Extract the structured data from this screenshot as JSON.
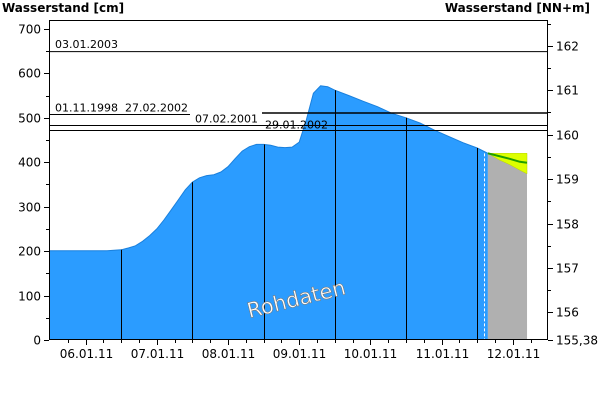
{
  "chart_data": {
    "type": "area",
    "left_axis": {
      "title": "Wasserstand [cm]",
      "ylim": [
        0,
        720
      ],
      "ticks": [
        0,
        100,
        200,
        300,
        400,
        500,
        600,
        700
      ]
    },
    "right_axis": {
      "title": "Wasserstand [NN+m]",
      "ticks": [
        "155,38",
        "156",
        "157",
        "158",
        "159",
        "160",
        "161",
        "162"
      ],
      "tick_cm": [
        0,
        62,
        162,
        262,
        362,
        462,
        562,
        662
      ]
    },
    "x_axis": {
      "tick_labels": [
        "06.01.11",
        "07.01.11",
        "08.01.11",
        "09.01.11",
        "10.01.11",
        "11.01.11",
        "12.01.11"
      ],
      "xlim": [
        0,
        7
      ]
    },
    "series": [
      {
        "values_x": [
          0.0,
          0.2,
          0.4,
          0.6,
          0.8,
          1.0,
          1.1,
          1.2,
          1.3,
          1.4,
          1.5,
          1.6,
          1.7,
          1.8,
          1.9,
          2.0,
          2.1,
          2.2,
          2.3,
          2.4,
          2.5,
          2.6,
          2.7,
          2.8,
          2.9,
          3.0,
          3.1,
          3.2,
          3.3,
          3.4,
          3.5,
          3.6,
          3.7,
          3.8,
          3.9,
          4.0,
          4.2,
          4.4,
          4.6,
          4.8,
          5.0,
          5.2,
          5.4,
          5.6,
          5.8,
          6.0,
          6.15
        ],
        "values_y": [
          201,
          201,
          201,
          201,
          201,
          203,
          207,
          212,
          222,
          235,
          250,
          270,
          292,
          315,
          338,
          355,
          365,
          370,
          372,
          378,
          390,
          408,
          425,
          435,
          440,
          440,
          438,
          434,
          433,
          434,
          445,
          495,
          555,
          572,
          570,
          562,
          550,
          537,
          525,
          510,
          500,
          488,
          472,
          458,
          444,
          432,
          420
        ]
      }
    ],
    "forecast": {
      "x": [
        6.15,
        6.3,
        6.45,
        6.6,
        6.7
      ],
      "center": [
        420,
        414,
        408,
        401,
        399
      ],
      "upper": [
        420,
        420,
        420,
        420,
        420
      ],
      "lower": [
        420,
        406,
        395,
        382,
        374
      ]
    },
    "reference_lines": [
      {
        "label": "03.01.2003",
        "value_cm": 650
      },
      {
        "label": "01.11.1998",
        "value_cm": 509
      },
      {
        "label": "27.02.2002",
        "value_cm": 509
      },
      {
        "label": "07.02.2001",
        "value_cm": 484
      },
      {
        "label": "29.01.2002",
        "value_cm": 472
      }
    ],
    "day_lines_x": [
      1,
      2,
      3,
      4,
      5,
      6
    ],
    "now_x": 6.1,
    "forecast_start_x": 6.15,
    "watermark": "Rohdaten",
    "colors": {
      "area": "#2b9cff",
      "area_edge": "#1a80dd",
      "forecast_area": "#b0b0b0",
      "forecast_band": "#ddff00",
      "forecast_line": "#1f9e00",
      "frame": "#000000",
      "now_line": "#ffffff"
    }
  }
}
